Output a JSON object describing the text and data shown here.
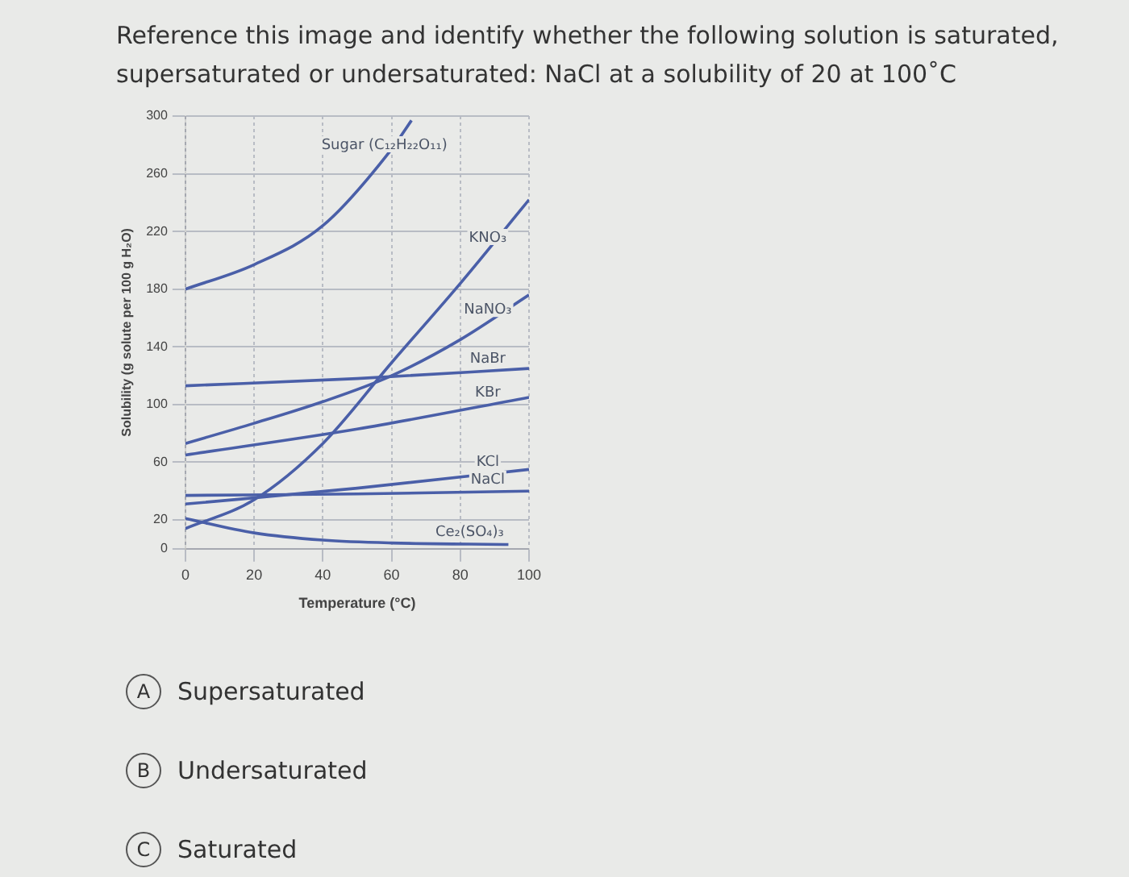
{
  "chart_data": {
    "type": "line",
    "title": "Reference this image and identify whether the following solution is saturated, supersaturated or undersaturated: NaCl at a solubility of 20 at 100˚C",
    "xlabel": "Temperature (°C)",
    "ylabel": "Solubility (g solute per 100 g H₂O)",
    "series": [
      {
        "name": "Sugar (C₁₂H₂₂O₁₁)",
        "color": "#4a5fa8",
        "x": [
          0,
          20,
          40,
          60,
          65.8
        ],
        "values": [
          180,
          197,
          224,
          277,
          297
        ]
      },
      {
        "name": "KNO₃",
        "color": "#4a5fa8",
        "x": [
          0,
          20,
          40,
          60,
          80,
          100
        ],
        "values": [
          14,
          34,
          73,
          129,
          184,
          242
        ]
      },
      {
        "name": "NaNO₃",
        "color": "#4a5fa8",
        "x": [
          0,
          20,
          40,
          60,
          80,
          100
        ],
        "values": [
          73,
          87,
          102,
          120,
          145,
          176
        ]
      },
      {
        "name": "NaBr",
        "color": "#4a5fa8",
        "x": [
          0,
          50,
          100
        ],
        "values": [
          113,
          118,
          125
        ]
      },
      {
        "name": "KBr",
        "color": "#4a5fa8",
        "x": [
          0,
          50,
          100
        ],
        "values": [
          65,
          83,
          105
        ]
      },
      {
        "name": "KCl",
        "color": "#4a5fa8",
        "x": [
          0,
          50,
          100
        ],
        "values": [
          31,
          42,
          55
        ]
      },
      {
        "name": "NaCl",
        "color": "#4a5fa8",
        "x": [
          0,
          50,
          100
        ],
        "values": [
          37,
          38,
          40
        ]
      },
      {
        "name": "Ce₂(SO₄)₃",
        "color": "#4a5fa8",
        "x": [
          0,
          20,
          40,
          60,
          94
        ],
        "values": [
          21,
          11,
          6,
          4,
          3
        ]
      }
    ],
    "xlim": [
      0,
      100
    ],
    "xticks": [
      0,
      20,
      40,
      60,
      80,
      100
    ],
    "ylim": [
      0,
      300
    ],
    "yticks": [
      0,
      20,
      60,
      100,
      140,
      180,
      220,
      260,
      300
    ],
    "grid": true,
    "legend": false,
    "marker": "none",
    "line_style": "solid",
    "annotations": [
      "A",
      "Supersaturated",
      "B",
      "Undersaturated",
      "C",
      "Saturated"
    ]
  }
}
